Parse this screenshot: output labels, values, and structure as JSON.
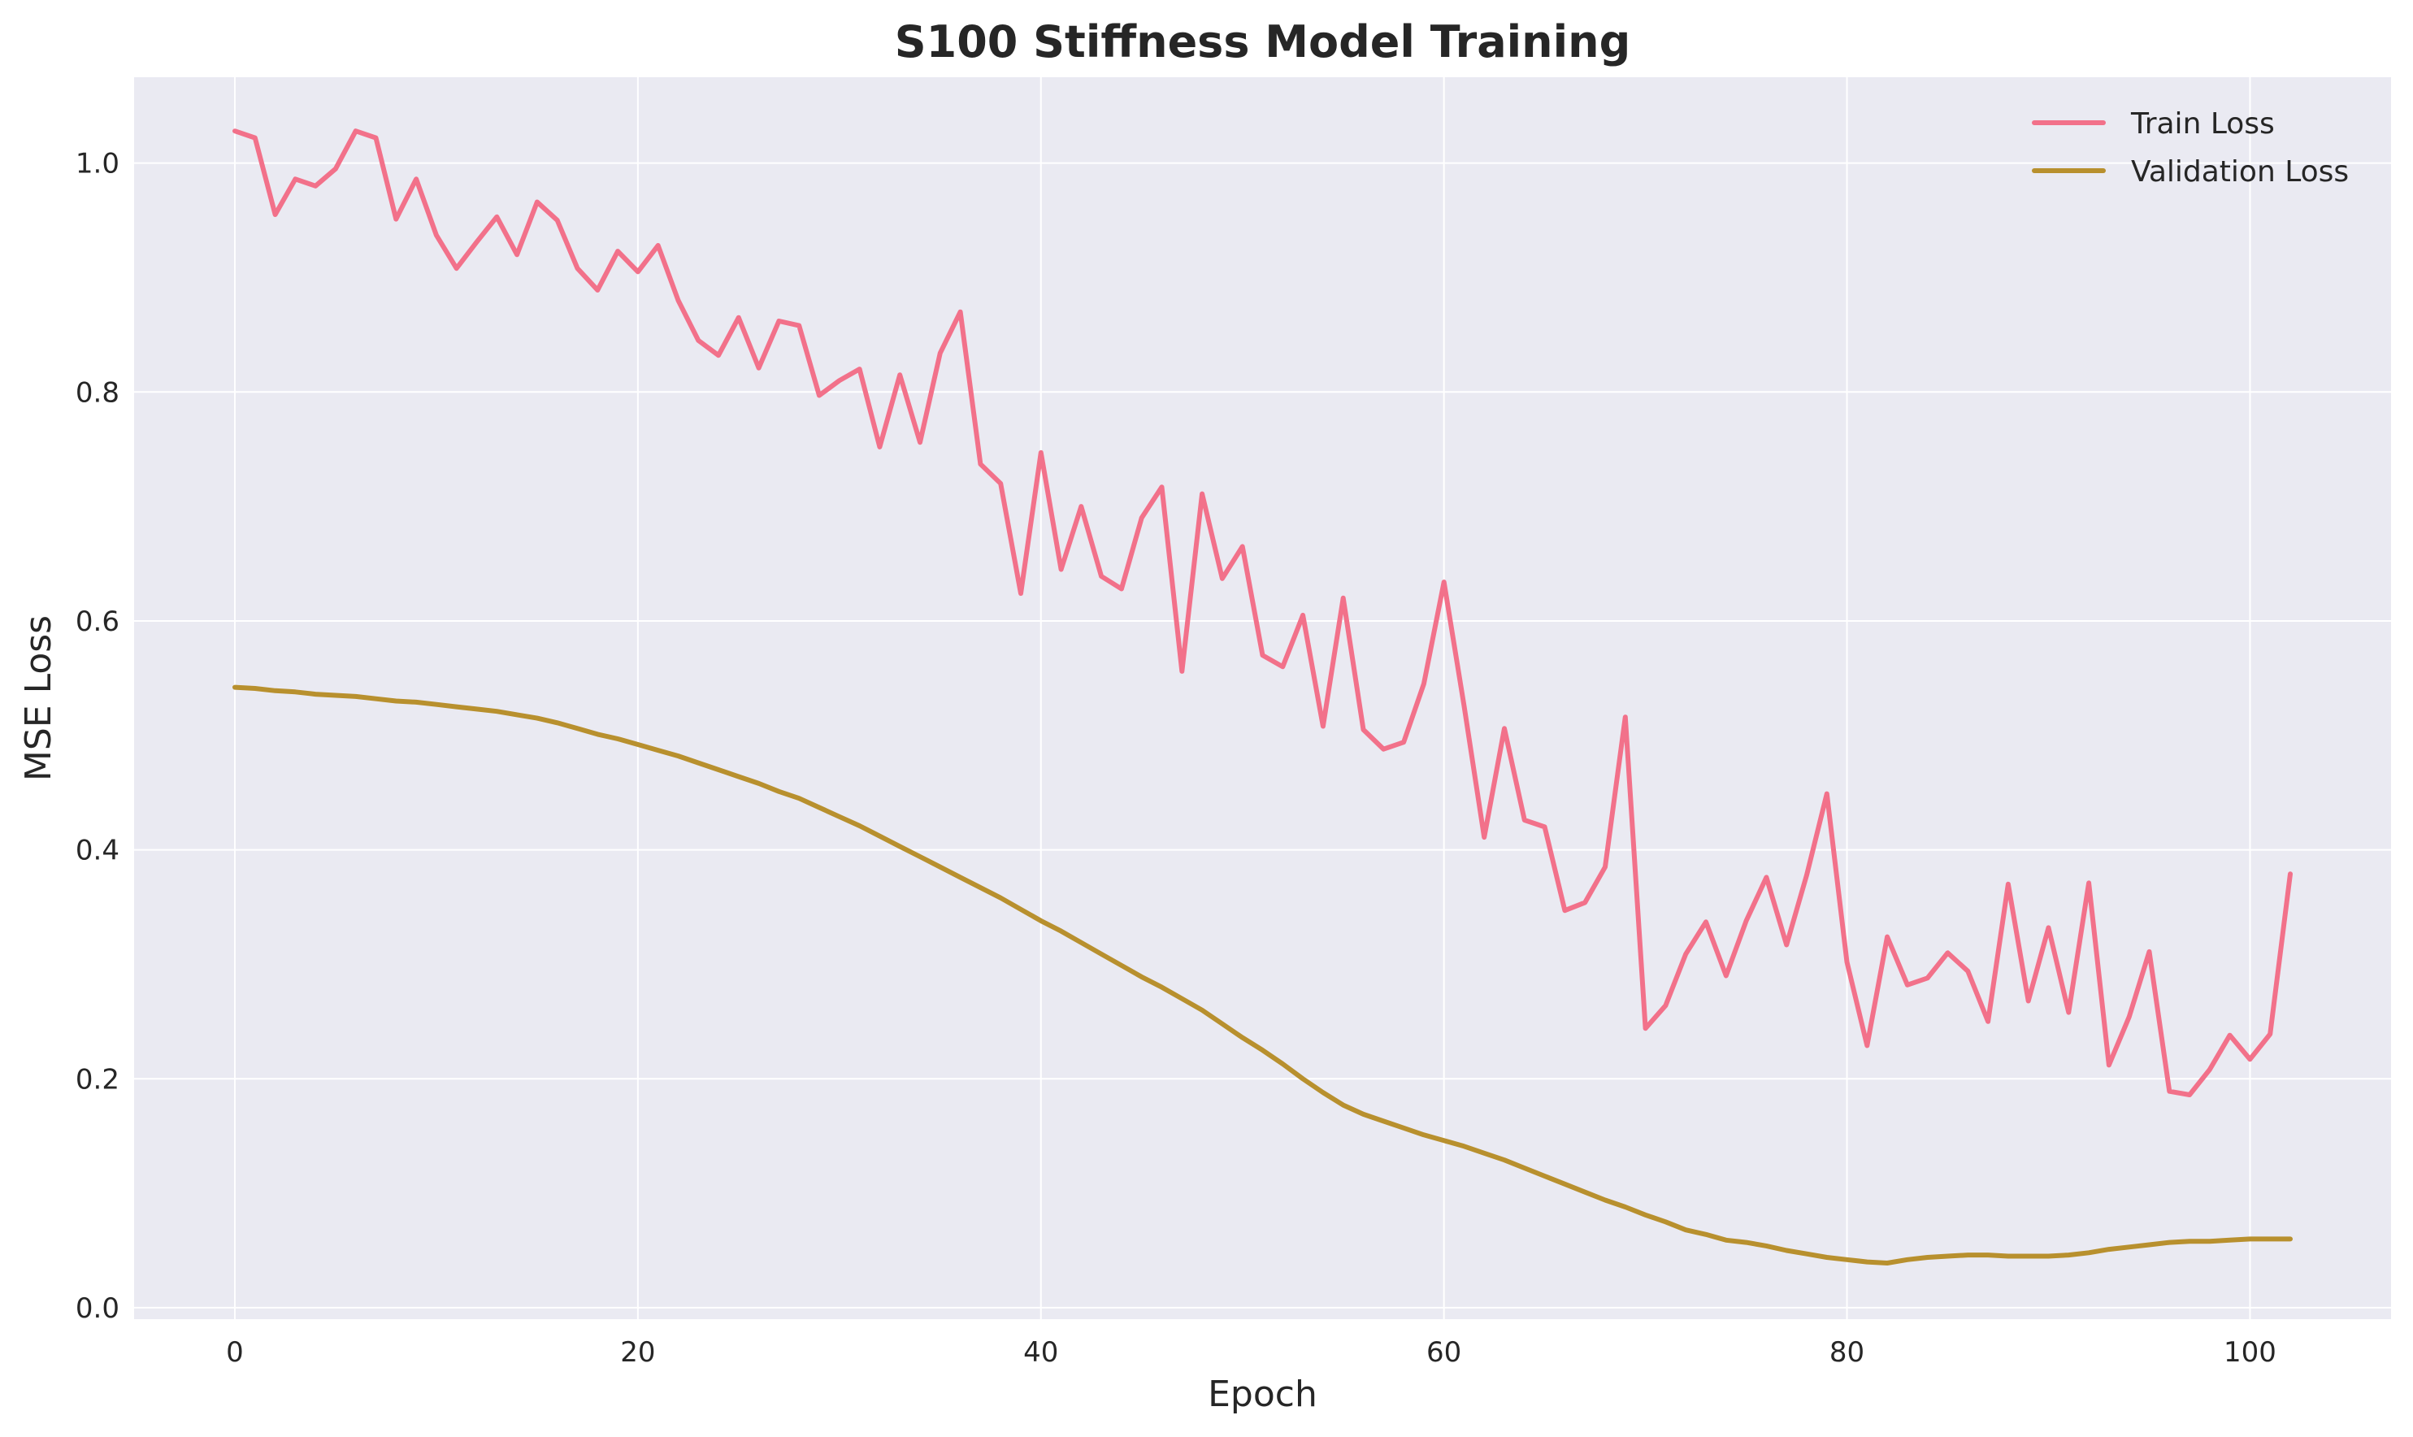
{
  "chart_data": {
    "type": "line",
    "title": "S100 Stiffness Model Training",
    "xlabel": "Epoch",
    "ylabel": "MSE Loss",
    "xlim": [
      -5,
      107
    ],
    "ylim": [
      -0.01,
      1.075
    ],
    "xticks": [
      "0",
      "20",
      "40",
      "60",
      "80",
      "100"
    ],
    "yticks": [
      "0.0",
      "0.2",
      "0.4",
      "0.6",
      "0.8",
      "1.0"
    ],
    "grid": true,
    "legend": "top-right",
    "x": [
      0,
      1,
      2,
      3,
      4,
      5,
      6,
      7,
      8,
      9,
      10,
      11,
      12,
      13,
      14,
      15,
      16,
      17,
      18,
      19,
      20,
      21,
      22,
      23,
      24,
      25,
      26,
      27,
      28,
      29,
      30,
      31,
      32,
      33,
      34,
      35,
      36,
      37,
      38,
      39,
      40,
      41,
      42,
      43,
      44,
      45,
      46,
      47,
      48,
      49,
      50,
      51,
      52,
      53,
      54,
      55,
      56,
      57,
      58,
      59,
      60,
      61,
      62,
      63,
      64,
      65,
      66,
      67,
      68,
      69,
      70,
      71,
      72,
      73,
      74,
      75,
      76,
      77,
      78,
      79,
      80,
      81,
      82,
      83,
      84,
      85,
      86,
      87,
      88,
      89,
      90,
      91,
      92,
      93,
      94,
      95,
      96,
      97,
      98,
      99,
      100,
      101,
      102
    ],
    "series": [
      {
        "name": "Train Loss",
        "color": "#f2718a",
        "values": [
          1.028,
          1.022,
          0.955,
          0.986,
          0.98,
          0.995,
          1.028,
          1.022,
          0.951,
          0.986,
          0.937,
          0.908,
          0.931,
          0.953,
          0.92,
          0.966,
          0.95,
          0.908,
          0.889,
          0.923,
          0.905,
          0.928,
          0.88,
          0.845,
          0.832,
          0.865,
          0.821,
          0.862,
          0.858,
          0.797,
          0.81,
          0.82,
          0.752,
          0.815,
          0.756,
          0.834,
          0.87,
          0.737,
          0.72,
          0.624,
          0.747,
          0.645,
          0.7,
          0.639,
          0.628,
          0.69,
          0.717,
          0.556,
          0.711,
          0.637,
          0.665,
          0.57,
          0.56,
          0.605,
          0.508,
          0.62,
          0.505,
          0.488,
          0.494,
          0.545,
          0.634,
          0.526,
          0.411,
          0.506,
          0.426,
          0.42,
          0.347,
          0.354,
          0.385,
          0.516,
          0.244,
          0.264,
          0.309,
          0.337,
          0.29,
          0.338,
          0.376,
          0.317,
          0.378,
          0.449,
          0.302,
          0.229,
          0.324,
          0.282,
          0.288,
          0.31,
          0.294,
          0.25,
          0.37,
          0.268,
          0.332,
          0.258,
          0.371,
          0.212,
          0.254,
          0.311,
          0.189,
          0.186,
          0.208,
          0.238,
          0.217,
          0.239,
          0.379
        ]
      },
      {
        "name": "Validation Loss",
        "color": "#b8902e",
        "values": [
          0.542,
          0.541,
          0.539,
          0.538,
          0.536,
          0.535,
          0.534,
          0.532,
          0.53,
          0.529,
          0.527,
          0.525,
          0.523,
          0.521,
          0.518,
          0.515,
          0.511,
          0.506,
          0.501,
          0.497,
          0.492,
          0.487,
          0.482,
          0.476,
          0.47,
          0.464,
          0.458,
          0.451,
          0.445,
          0.437,
          0.429,
          0.421,
          0.412,
          0.403,
          0.394,
          0.385,
          0.376,
          0.367,
          0.358,
          0.348,
          0.338,
          0.329,
          0.319,
          0.309,
          0.299,
          0.289,
          0.28,
          0.27,
          0.26,
          0.248,
          0.236,
          0.225,
          0.213,
          0.2,
          0.188,
          0.177,
          0.169,
          0.163,
          0.157,
          0.151,
          0.146,
          0.141,
          0.135,
          0.129,
          0.122,
          0.115,
          0.108,
          0.101,
          0.094,
          0.088,
          0.081,
          0.075,
          0.068,
          0.064,
          0.059,
          0.057,
          0.054,
          0.05,
          0.047,
          0.044,
          0.042,
          0.04,
          0.039,
          0.042,
          0.044,
          0.045,
          0.046,
          0.046,
          0.045,
          0.045,
          0.045,
          0.046,
          0.048,
          0.051,
          0.053,
          0.055,
          0.057,
          0.058,
          0.058,
          0.059,
          0.06,
          0.06,
          0.06
        ]
      }
    ]
  }
}
